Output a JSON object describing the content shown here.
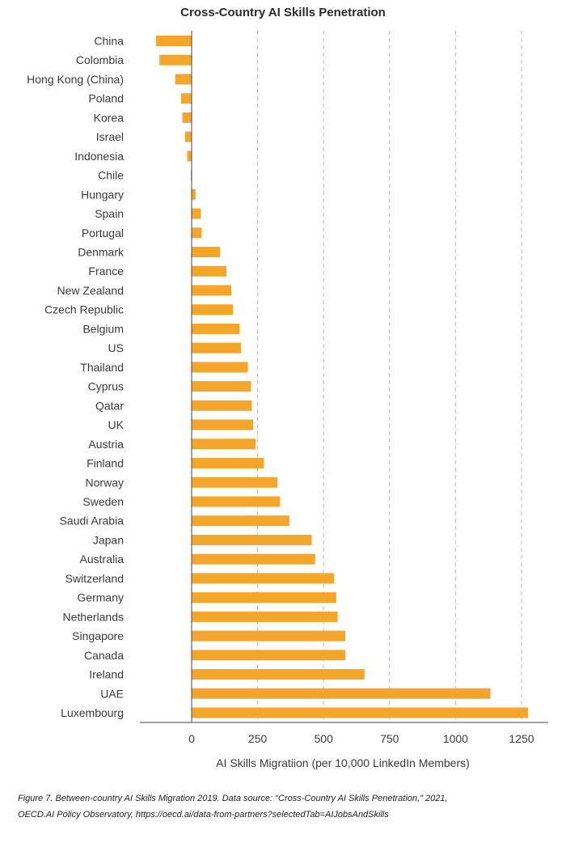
{
  "colors": {
    "bar": "#f4a62a",
    "grid": "#b8b8b8",
    "axis": "#444444",
    "text": "#3a3a3a"
  },
  "chart_data": {
    "type": "bar",
    "orientation": "horizontal",
    "title": "Cross-Country AI Skills Penetration",
    "xlabel": "AI Skills Migratiion (per 10,000 LinkedIn Members)",
    "ylabel": "",
    "xlim": [
      -140,
      1290
    ],
    "xticks": [
      0,
      250,
      500,
      750,
      1000,
      1250
    ],
    "grid": "vertical-dashed",
    "categories": [
      "China",
      "Colombia",
      "Hong Kong (China)",
      "Poland",
      "Korea",
      "Israel",
      "Indonesia",
      "Chile",
      "Hungary",
      "Spain",
      "Portugal",
      "Denmark",
      "France",
      "New Zealand",
      "Czech Republic",
      "Belgium",
      "US",
      "Thailand",
      "Cyprus",
      "Qatar",
      "UK",
      "Austria",
      "Finland",
      "Norway",
      "Sweden",
      "Saudi Arabia",
      "Japan",
      "Australia",
      "Switzerland",
      "Germany",
      "Netherlands",
      "Singapore",
      "Canada",
      "Ireland",
      "UAE",
      "Luxembourg"
    ],
    "values": [
      -135,
      -122,
      -62,
      -40,
      -35,
      -25,
      -17,
      -3,
      15,
      35,
      38,
      108,
      132,
      150,
      157,
      182,
      187,
      213,
      225,
      228,
      233,
      243,
      274,
      325,
      335,
      370,
      455,
      468,
      540,
      548,
      553,
      582,
      582,
      655,
      1132,
      1275
    ]
  },
  "caption": {
    "line1": "Figure 7. Between-country AI Skills Migration 2019. Data source: \"Cross-Country AI Skills Penetration,\" 2021,",
    "line2": "OECD.AI Policy Observatory, https://oecd.ai/data-from-partners?selectedTab=AIJobsAndSkills"
  }
}
